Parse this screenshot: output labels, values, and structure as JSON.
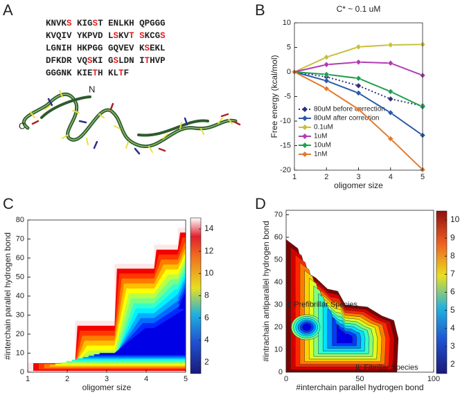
{
  "panel_labels": [
    "A",
    "B",
    "C",
    "D"
  ],
  "sequence": [
    [
      "KNVK",
      "S",
      " KIG",
      "S",
      "T ENLKH QPGGG"
    ],
    [
      "KVQIV YKPVD L",
      "S",
      "KV",
      "T",
      " ",
      "S",
      "KCG",
      "S"
    ],
    [
      "LGNIH HKPGG GQVEV K",
      "S",
      "EKL"
    ],
    [
      "DFKDR VQ",
      "S",
      "KI G",
      "S",
      "LDN I",
      "T",
      "HVP"
    ],
    [
      "GGGNK KIE",
      "T",
      "H KL",
      "T",
      "F"
    ]
  ],
  "structure_labels": [
    "N",
    "C"
  ],
  "chart_data": [
    {
      "type": "line",
      "title": "C* ~ 0.1 uM",
      "xlabel": "oligomer size",
      "ylabel": "Free energy (kcal/mol)",
      "x": [
        1,
        2,
        3,
        4,
        5
      ],
      "xlim": [
        1,
        5
      ],
      "xticks": [
        1,
        2,
        3,
        4,
        5
      ],
      "ylim": [
        -20,
        10
      ],
      "yticks": [
        -20,
        -15,
        -10,
        -5,
        0,
        5,
        10
      ],
      "legend": "lower left",
      "series": [
        {
          "name": "80uM before correction",
          "color": "#2b2f7a",
          "dashed": true,
          "values": [
            0,
            -1,
            -2.8,
            -5.5,
            -6.9
          ]
        },
        {
          "name": "80uM after correction",
          "color": "#2b5aa8",
          "values": [
            0,
            -1.8,
            -4.3,
            -8.3,
            -12.9
          ]
        },
        {
          "name": "0.1uM",
          "color": "#c8bf3c",
          "values": [
            0,
            3,
            5.1,
            5.5,
            5.6
          ]
        },
        {
          "name": "1uM",
          "color": "#b03cb0",
          "values": [
            0,
            1.5,
            2,
            1.8,
            -0.7
          ]
        },
        {
          "name": "10uM",
          "color": "#1fa04f",
          "values": [
            0,
            -0.5,
            -1.3,
            -4,
            -7.1
          ]
        },
        {
          "name": "1nM",
          "color": "#e07a30",
          "values": [
            0,
            -3.4,
            -7.6,
            -13.6,
            -19.9
          ]
        }
      ]
    },
    {
      "type": "contour",
      "xlabel": "oligomer size",
      "ylabel": "#interchain parallel hydrogen bond",
      "xlim": [
        1,
        5
      ],
      "xticks": [
        1,
        2,
        3,
        4,
        5
      ],
      "ylim": [
        0,
        80
      ],
      "yticks": [
        0,
        10,
        20,
        30,
        40,
        50,
        60,
        70,
        80
      ],
      "clim": [
        1,
        15
      ],
      "cticks": [
        2,
        4,
        6,
        8,
        10,
        12,
        14
      ]
    },
    {
      "type": "contour",
      "xlabel": "#interchain parallel hydrogen bond",
      "ylabel": "#intrachain antiparallel hydrogen bond",
      "xlim": [
        0,
        100
      ],
      "xticks": [
        0,
        50,
        100
      ],
      "ylim": [
        0,
        72
      ],
      "yticks": [
        0,
        10,
        20,
        30,
        40,
        50,
        60,
        70
      ],
      "clim": [
        1.5,
        10.5
      ],
      "cticks": [
        2,
        3,
        4,
        5,
        6,
        7,
        8,
        9,
        10
      ],
      "annotations": [
        "I: Prefibrillar Species",
        "II: Fibrillar Species"
      ]
    }
  ]
}
